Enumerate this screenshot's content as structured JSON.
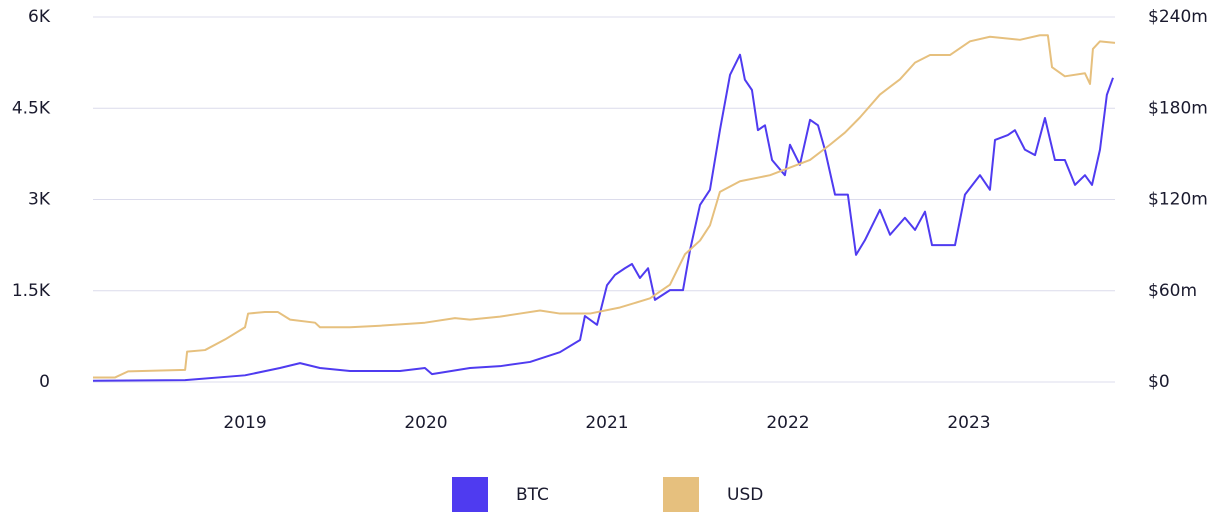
{
  "chart_data": {
    "type": "line",
    "xlim": [
      2018.16,
      2023.807
    ],
    "xticks": [
      2019,
      2020,
      2021,
      2022,
      2023
    ],
    "ylim": [
      0,
      6000
    ],
    "yticks": [
      0,
      {
        "value": 1500,
        "label": "1.5K"
      },
      {
        "value": 3000,
        "label": "3K"
      },
      {
        "value": 4500,
        "label": "4.5K"
      },
      {
        "value": 6000,
        "label": "6K"
      }
    ],
    "y2lim": [
      0,
      240
    ],
    "y2ticks": [
      {
        "value": 0,
        "label": "$0"
      },
      {
        "value": 60,
        "label": "$60m"
      },
      {
        "value": 120,
        "label": "$120m"
      },
      {
        "value": 180,
        "label": "$180m"
      },
      {
        "value": 240,
        "label": "$240m"
      }
    ],
    "grid": true,
    "legend": "bottom",
    "series": [
      {
        "name": "BTC",
        "color": "#4f3bf0",
        "x": [
          2018.16,
          2018.669,
          2019.0,
          2019.193,
          2019.304,
          2019.414,
          2019.58,
          2019.856,
          2019.994,
          2020.033,
          2020.243,
          2020.409,
          2020.575,
          2020.74,
          2020.851,
          2020.878,
          2020.945,
          2021.0,
          2021.044,
          2021.099,
          2021.138,
          2021.182,
          2021.227,
          2021.265,
          2021.348,
          2021.42,
          2021.459,
          2021.514,
          2021.569,
          2021.624,
          2021.68,
          2021.735,
          2021.762,
          2021.801,
          2021.834,
          2021.873,
          2021.912,
          2021.983,
          2022.011,
          2022.066,
          2022.122,
          2022.166,
          2022.204,
          2022.26,
          2022.331,
          2022.376,
          2022.425,
          2022.508,
          2022.564,
          2022.646,
          2022.702,
          2022.757,
          2022.796,
          2022.923,
          2022.978,
          2023.061,
          2023.116,
          2023.144,
          2023.215,
          2023.254,
          2023.309,
          2023.365,
          2023.42,
          2023.475,
          2023.53,
          2023.586,
          2023.641,
          2023.68,
          2023.724,
          2023.762,
          2023.796
        ],
        "values": [
          20,
          30,
          110,
          230,
          310,
          230,
          180,
          180,
          230,
          130,
          230,
          260,
          330,
          490,
          690,
          1085,
          940,
          1590,
          1760,
          1870,
          1940,
          1710,
          1870,
          1350,
          1510,
          1510,
          2170,
          2910,
          3160,
          4140,
          5050,
          5380,
          4970,
          4800,
          4140,
          4220,
          3650,
          3400,
          3900,
          3570,
          4310,
          4220,
          3820,
          3080,
          3080,
          2090,
          2330,
          2830,
          2420,
          2700,
          2500,
          2800,
          2250,
          2250,
          3080,
          3400,
          3160,
          3980,
          4060,
          4140,
          3820,
          3730,
          4340,
          3650,
          3650,
          3240,
          3400,
          3240,
          3820,
          4720,
          5000
        ]
      },
      {
        "name": "USD",
        "color": "#e6c07e",
        "axis": "y2",
        "x": [
          2018.16,
          2018.282,
          2018.354,
          2018.669,
          2018.68,
          2018.779,
          2018.89,
          2019.0,
          2019.017,
          2019.11,
          2019.182,
          2019.249,
          2019.387,
          2019.414,
          2019.58,
          2019.746,
          2019.994,
          2020.16,
          2020.243,
          2020.409,
          2020.519,
          2020.63,
          2020.74,
          2020.906,
          2021.072,
          2021.238,
          2021.348,
          2021.431,
          2021.514,
          2021.569,
          2021.624,
          2021.735,
          2021.901,
          2022.011,
          2022.122,
          2022.232,
          2022.315,
          2022.398,
          2022.508,
          2022.619,
          2022.702,
          2022.785,
          2022.895,
          2023.006,
          2023.116,
          2023.282,
          2023.392,
          2023.436,
          2023.459,
          2023.53,
          2023.641,
          2023.669,
          2023.685,
          2023.724,
          2023.807
        ],
        "values": [
          3,
          3,
          7,
          8,
          20,
          21,
          28,
          36,
          45,
          46,
          46,
          41,
          39,
          36,
          36,
          37,
          39,
          42,
          41,
          43,
          45,
          47,
          45,
          45,
          49,
          55,
          64,
          84,
          93,
          103,
          125,
          132,
          136,
          141,
          146,
          156,
          164,
          174,
          189,
          199,
          210,
          215,
          215,
          224,
          227,
          225,
          228,
          228,
          207,
          201,
          203,
          196,
          219,
          224,
          223
        ]
      }
    ]
  }
}
